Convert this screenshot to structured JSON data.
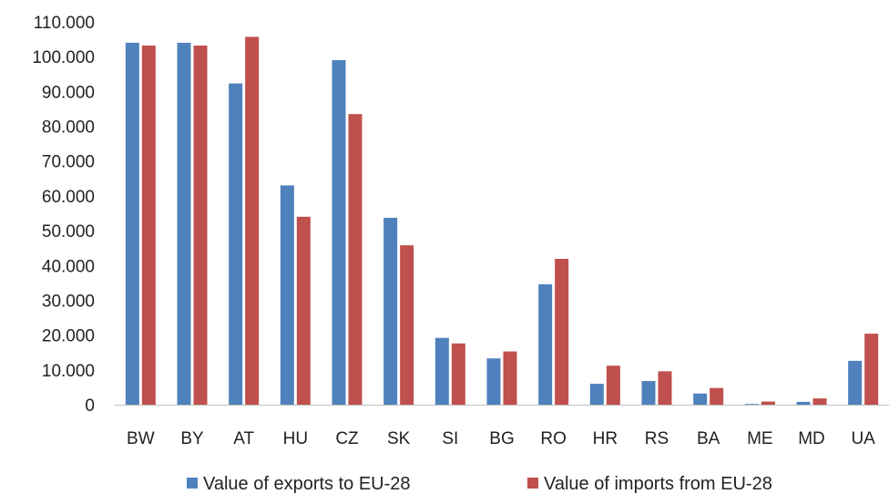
{
  "chart_data": {
    "type": "bar",
    "categories": [
      "BW",
      "BY",
      "AT",
      "HU",
      "CZ",
      "SK",
      "SI",
      "BG",
      "RO",
      "HR",
      "RS",
      "BA",
      "ME",
      "MD",
      "UA"
    ],
    "series": [
      {
        "name": "Value of exports to EU-28",
        "color": "#4F81BD",
        "values": [
          104000,
          104000,
          92300,
          63000,
          99000,
          53700,
          19200,
          13300,
          34600,
          6000,
          6800,
          3200,
          200,
          800,
          12600
        ]
      },
      {
        "name": "Value of imports from EU-28",
        "color": "#C0504D",
        "values": [
          103200,
          103200,
          105700,
          54000,
          83500,
          45800,
          17600,
          15300,
          41900,
          11200,
          9600,
          4800,
          900,
          1800,
          20400
        ]
      }
    ],
    "y_ticks": [
      "0",
      "10.000",
      "20.000",
      "30.000",
      "40.000",
      "50.000",
      "60.000",
      "70.000",
      "80.000",
      "90.000",
      "100.000",
      "110.000"
    ],
    "ylim": [
      0,
      110000
    ],
    "title": "",
    "xlabel": "",
    "ylabel": "",
    "grid": false,
    "legend_position": "bottom"
  }
}
